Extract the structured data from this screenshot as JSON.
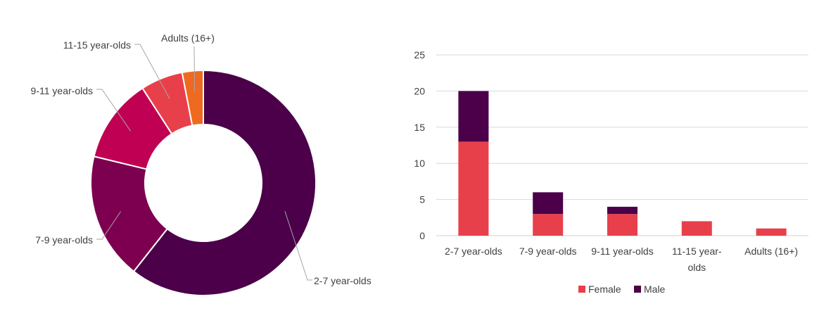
{
  "chart_data": [
    {
      "type": "pie",
      "style": "donut",
      "categories": [
        "2-7 year-olds",
        "7-9 year-olds",
        "9-11 year-olds",
        "11-15 year-olds",
        "Adults (16+)"
      ],
      "values": [
        20,
        6,
        4,
        2,
        1
      ],
      "colors": [
        "#4b0049",
        "#7d0050",
        "#c00052",
        "#e8404a",
        "#ee6a20"
      ],
      "title": ""
    },
    {
      "type": "bar",
      "stacked": true,
      "categories": [
        "2-7 year-olds",
        "7-9 year-olds",
        "9-11 year-olds",
        "11-15 year-olds",
        "Adults (16+)"
      ],
      "category_lines": [
        [
          "2-7 year-olds"
        ],
        [
          "7-9 year-olds"
        ],
        [
          "9-11 year-olds"
        ],
        [
          "11-15 year-",
          "olds"
        ],
        [
          "Adults (16+)"
        ]
      ],
      "series": [
        {
          "name": "Female",
          "values": [
            13,
            3,
            3,
            2,
            1
          ],
          "color": "#e8404a"
        },
        {
          "name": "Male",
          "values": [
            7,
            3,
            1,
            0,
            0
          ],
          "color": "#4b0049"
        }
      ],
      "ylim": [
        0,
        25
      ],
      "yticks": [
        0,
        5,
        10,
        15,
        20,
        25
      ],
      "grid": true,
      "legend": "bottom",
      "title": "",
      "xlabel": "",
      "ylabel": ""
    }
  ]
}
